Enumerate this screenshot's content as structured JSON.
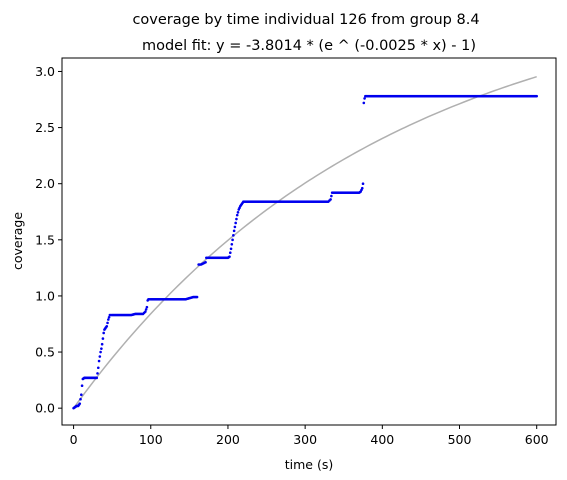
{
  "chart_data": {
    "type": "scatter",
    "title": "coverage by time individual 126 from group 8.4",
    "subtitle": "model fit: y = -3.8014 * (e ^ (-0.0025 * x) - 1)",
    "xlabel": "time (s)",
    "ylabel": "coverage",
    "xlim": [
      -15,
      625
    ],
    "ylim": [
      -0.15,
      3.12
    ],
    "xticks": [
      0,
      100,
      200,
      300,
      400,
      500,
      600
    ],
    "yticks": [
      0.0,
      0.5,
      1.0,
      1.5,
      2.0,
      2.5,
      3.0
    ],
    "xtick_labels": [
      "0",
      "100",
      "200",
      "300",
      "400",
      "500",
      "600"
    ],
    "ytick_labels": [
      "0.0",
      "0.5",
      "1.0",
      "1.5",
      "2.0",
      "2.5",
      "3.0"
    ],
    "grid": false,
    "colors": {
      "points": "#0000ee",
      "fit": "#b0b0b0"
    },
    "fit": {
      "a": -3.8014,
      "b": -0.0025,
      "x_range": [
        0,
        600
      ]
    },
    "series_points": [
      [
        0,
        0.0
      ],
      [
        2,
        0.01
      ],
      [
        4,
        0.02
      ],
      [
        6,
        0.02
      ],
      [
        8,
        0.04
      ],
      [
        10,
        0.12
      ],
      [
        11,
        0.2
      ],
      [
        12,
        0.26
      ],
      [
        14,
        0.27
      ],
      [
        16,
        0.27
      ],
      [
        20,
        0.27
      ],
      [
        24,
        0.27
      ],
      [
        28,
        0.27
      ],
      [
        30,
        0.27
      ],
      [
        31,
        0.31
      ],
      [
        32,
        0.36
      ],
      [
        33,
        0.42
      ],
      [
        34,
        0.46
      ],
      [
        35,
        0.5
      ],
      [
        36,
        0.53
      ],
      [
        37,
        0.57
      ],
      [
        38,
        0.62
      ],
      [
        39,
        0.67
      ],
      [
        40,
        0.7
      ],
      [
        41,
        0.71
      ],
      [
        42,
        0.72
      ],
      [
        43,
        0.73
      ],
      [
        44,
        0.76
      ],
      [
        45,
        0.79
      ],
      [
        46,
        0.81
      ],
      [
        47,
        0.83
      ],
      [
        50,
        0.83
      ],
      [
        55,
        0.83
      ],
      [
        60,
        0.83
      ],
      [
        65,
        0.83
      ],
      [
        70,
        0.83
      ],
      [
        75,
        0.83
      ],
      [
        80,
        0.84
      ],
      [
        85,
        0.84
      ],
      [
        90,
        0.84
      ],
      [
        93,
        0.86
      ],
      [
        95,
        0.9
      ],
      [
        96,
        0.96
      ],
      [
        97,
        0.97
      ],
      [
        100,
        0.97
      ],
      [
        105,
        0.97
      ],
      [
        110,
        0.97
      ],
      [
        115,
        0.97
      ],
      [
        120,
        0.97
      ],
      [
        125,
        0.97
      ],
      [
        130,
        0.97
      ],
      [
        135,
        0.97
      ],
      [
        140,
        0.97
      ],
      [
        145,
        0.97
      ],
      [
        150,
        0.98
      ],
      [
        155,
        0.99
      ],
      [
        160,
        0.99
      ],
      [
        162,
        1.28
      ],
      [
        165,
        1.28
      ],
      [
        168,
        1.29
      ],
      [
        171,
        1.3
      ],
      [
        172,
        1.34
      ],
      [
        175,
        1.34
      ],
      [
        180,
        1.34
      ],
      [
        185,
        1.34
      ],
      [
        190,
        1.34
      ],
      [
        195,
        1.34
      ],
      [
        200,
        1.34
      ],
      [
        202,
        1.35
      ],
      [
        204,
        1.42
      ],
      [
        206,
        1.5
      ],
      [
        208,
        1.58
      ],
      [
        210,
        1.65
      ],
      [
        212,
        1.72
      ],
      [
        214,
        1.77
      ],
      [
        216,
        1.8
      ],
      [
        218,
        1.82
      ],
      [
        220,
        1.84
      ],
      [
        225,
        1.84
      ],
      [
        230,
        1.84
      ],
      [
        235,
        1.84
      ],
      [
        240,
        1.84
      ],
      [
        245,
        1.84
      ],
      [
        250,
        1.84
      ],
      [
        255,
        1.84
      ],
      [
        260,
        1.84
      ],
      [
        265,
        1.84
      ],
      [
        270,
        1.84
      ],
      [
        275,
        1.84
      ],
      [
        280,
        1.84
      ],
      [
        285,
        1.84
      ],
      [
        290,
        1.84
      ],
      [
        295,
        1.84
      ],
      [
        300,
        1.84
      ],
      [
        305,
        1.84
      ],
      [
        310,
        1.84
      ],
      [
        315,
        1.84
      ],
      [
        320,
        1.84
      ],
      [
        325,
        1.84
      ],
      [
        330,
        1.84
      ],
      [
        333,
        1.86
      ],
      [
        335,
        1.92
      ],
      [
        340,
        1.92
      ],
      [
        345,
        1.92
      ],
      [
        350,
        1.92
      ],
      [
        355,
        1.92
      ],
      [
        360,
        1.92
      ],
      [
        365,
        1.92
      ],
      [
        370,
        1.92
      ],
      [
        372,
        1.93
      ],
      [
        374,
        1.96
      ],
      [
        375,
        2.0
      ],
      [
        376,
        2.72
      ],
      [
        377,
        2.76
      ],
      [
        378,
        2.78
      ],
      [
        380,
        2.78
      ],
      [
        390,
        2.78
      ],
      [
        400,
        2.78
      ],
      [
        410,
        2.78
      ],
      [
        420,
        2.78
      ],
      [
        430,
        2.78
      ],
      [
        440,
        2.78
      ],
      [
        450,
        2.78
      ],
      [
        460,
        2.78
      ],
      [
        470,
        2.78
      ],
      [
        480,
        2.78
      ],
      [
        490,
        2.78
      ],
      [
        500,
        2.78
      ],
      [
        510,
        2.78
      ],
      [
        520,
        2.78
      ],
      [
        530,
        2.78
      ],
      [
        540,
        2.78
      ],
      [
        550,
        2.78
      ],
      [
        560,
        2.78
      ],
      [
        570,
        2.78
      ],
      [
        580,
        2.78
      ],
      [
        590,
        2.78
      ],
      [
        600,
        2.78
      ]
    ]
  }
}
